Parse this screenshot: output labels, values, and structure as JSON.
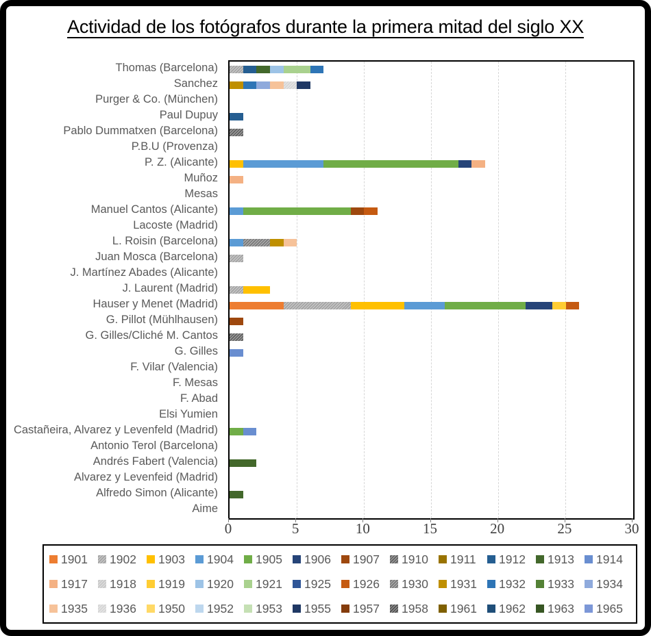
{
  "title": "Actividad de los fotógrafos durante la primera mitad del siglo XX",
  "chart_data": {
    "type": "bar",
    "orientation": "horizontal",
    "stacked": true,
    "title": "Actividad de los fotógrafos durante la primera mitad del siglo XX",
    "xlabel": "",
    "ylabel": "",
    "xlim": [
      0,
      30
    ],
    "x_ticks": [
      0,
      5,
      10,
      15,
      20,
      25,
      30
    ],
    "grid": true,
    "legend_position": "bottom",
    "legend_years": [
      "1901",
      "1902",
      "1903",
      "1904",
      "1905",
      "1906",
      "1907",
      "1910",
      "1911",
      "1912",
      "1913",
      "1914",
      "1917",
      "1918",
      "1919",
      "1920",
      "1921",
      "1925",
      "1926",
      "1930",
      "1931",
      "1932",
      "1933",
      "1934",
      "1935",
      "1936",
      "1950",
      "1952",
      "1953",
      "1955",
      "1957",
      "1958",
      "1961",
      "1962",
      "1963",
      "1965"
    ],
    "patterned_years": [
      "1902",
      "1910",
      "1918",
      "1930",
      "1936",
      "1958"
    ],
    "year_colors": {
      "1901": "#ED7D31",
      "1902": "#A5A5A5",
      "1903": "#FFC000",
      "1904": "#5B9BD5",
      "1905": "#70AD47",
      "1906": "#264478",
      "1907": "#9E480E",
      "1910": "#636363",
      "1911": "#997300",
      "1912": "#255E91",
      "1913": "#43682B",
      "1914": "#698ED0",
      "1917": "#F4B183",
      "1918": "#C9C9C9",
      "1919": "#FFCD33",
      "1920": "#9DC3E6",
      "1921": "#A9D18E",
      "1925": "#2F5597",
      "1926": "#C55A11",
      "1930": "#7B7B7B",
      "1931": "#BF8F00",
      "1932": "#2E75B6",
      "1933": "#538135",
      "1934": "#8FAADC",
      "1935": "#F6C299",
      "1936": "#D6D6D6",
      "1950": "#FFD966",
      "1952": "#BDD7EE",
      "1953": "#C5E0B4",
      "1955": "#1F3864",
      "1957": "#843C0C",
      "1958": "#525252",
      "1961": "#7F6000",
      "1962": "#1F4E79",
      "1963": "#375623",
      "1965": "#7C97D7"
    },
    "rows": [
      {
        "label": "Thomas (Barcelona)",
        "total": 7,
        "segments": [
          {
            "year": "1902",
            "value": 1
          },
          {
            "year": "1912",
            "value": 1
          },
          {
            "year": "1913",
            "value": 1
          },
          {
            "year": "1920",
            "value": 1
          },
          {
            "year": "1921",
            "value": 2
          },
          {
            "year": "1932",
            "value": 1
          }
        ]
      },
      {
        "label": "Sanchez",
        "total": 6,
        "segments": [
          {
            "year": "1931",
            "value": 1
          },
          {
            "year": "1932",
            "value": 1
          },
          {
            "year": "1934",
            "value": 1
          },
          {
            "year": "1935",
            "value": 1
          },
          {
            "year": "1936",
            "value": 1
          },
          {
            "year": "1955",
            "value": 1
          }
        ]
      },
      {
        "label": "Purger & Co. (München)",
        "total": 0,
        "segments": []
      },
      {
        "label": "Paul Dupuy",
        "total": 1,
        "segments": [
          {
            "year": "1912",
            "value": 1
          }
        ]
      },
      {
        "label": "Pablo Dummatxen (Barcelona)",
        "total": 1,
        "segments": [
          {
            "year": "1910",
            "value": 1
          }
        ]
      },
      {
        "label": "P.B.U (Provenza)",
        "total": 0,
        "segments": []
      },
      {
        "label": "P. Z. (Alicante)",
        "total": 19,
        "segments": [
          {
            "year": "1903",
            "value": 1
          },
          {
            "year": "1904",
            "value": 6
          },
          {
            "year": "1905",
            "value": 10
          },
          {
            "year": "1906",
            "value": 1
          },
          {
            "year": "1917",
            "value": 1
          }
        ]
      },
      {
        "label": "Muñoz",
        "total": 1,
        "segments": [
          {
            "year": "1917",
            "value": 1
          }
        ]
      },
      {
        "label": "Mesas",
        "total": 0,
        "segments": []
      },
      {
        "label": "Manuel Cantos (Alicante)",
        "total": 11,
        "segments": [
          {
            "year": "1904",
            "value": 1
          },
          {
            "year": "1905",
            "value": 8
          },
          {
            "year": "1907",
            "value": 1
          },
          {
            "year": "1926",
            "value": 1
          }
        ]
      },
      {
        "label": "Lacoste (Madrid)",
        "total": 0,
        "segments": []
      },
      {
        "label": "L. Roisin (Barcelona)",
        "total": 5,
        "segments": [
          {
            "year": "1904",
            "value": 1
          },
          {
            "year": "1930",
            "value": 2
          },
          {
            "year": "1931",
            "value": 1
          },
          {
            "year": "1935",
            "value": 1
          }
        ]
      },
      {
        "label": "Juan Mosca (Barcelona)",
        "total": 1,
        "segments": [
          {
            "year": "1902",
            "value": 1
          }
        ]
      },
      {
        "label": "J. Martínez Abades (Alicante)",
        "total": 0,
        "segments": []
      },
      {
        "label": "J. Laurent (Madrid)",
        "total": 3,
        "segments": [
          {
            "year": "1902",
            "value": 1
          },
          {
            "year": "1903",
            "value": 2
          }
        ]
      },
      {
        "label": "Hauser y Menet (Madrid)",
        "total": 26,
        "segments": [
          {
            "year": "1901",
            "value": 4
          },
          {
            "year": "1902",
            "value": 5
          },
          {
            "year": "1903",
            "value": 4
          },
          {
            "year": "1904",
            "value": 3
          },
          {
            "year": "1905",
            "value": 6
          },
          {
            "year": "1906",
            "value": 2
          },
          {
            "year": "1919",
            "value": 1
          },
          {
            "year": "1926",
            "value": 1
          }
        ]
      },
      {
        "label": "G. Pillot (Mühlhausen)",
        "total": 1,
        "segments": [
          {
            "year": "1907",
            "value": 1
          }
        ]
      },
      {
        "label": "G. Gilles/Cliché M. Cantos",
        "total": 1,
        "segments": [
          {
            "year": "1910",
            "value": 1
          }
        ]
      },
      {
        "label": "G. Gilles",
        "total": 1,
        "segments": [
          {
            "year": "1914",
            "value": 1
          }
        ]
      },
      {
        "label": "F. Vilar (Valencia)",
        "total": 0,
        "segments": []
      },
      {
        "label": "F. Mesas",
        "total": 0,
        "segments": []
      },
      {
        "label": "F. Abad",
        "total": 0,
        "segments": []
      },
      {
        "label": "Elsi Yumien",
        "total": 0,
        "segments": []
      },
      {
        "label": "Castañeira, Alvarez y Levenfeld (Madrid)",
        "total": 2,
        "segments": [
          {
            "year": "1905",
            "value": 1
          },
          {
            "year": "1914",
            "value": 1
          }
        ]
      },
      {
        "label": "Antonio Terol (Barcelona)",
        "total": 0,
        "segments": []
      },
      {
        "label": "Andrés Fabert (Valencia)",
        "total": 2,
        "segments": [
          {
            "year": "1913",
            "value": 2
          }
        ]
      },
      {
        "label": "Alvarez y Levenfeid (Madrid)",
        "total": 0,
        "segments": []
      },
      {
        "label": "Alfredo Simon (Alicante)",
        "total": 1,
        "segments": [
          {
            "year": "1913",
            "value": 1
          }
        ]
      },
      {
        "label": "Aime",
        "total": 0,
        "segments": []
      }
    ]
  }
}
